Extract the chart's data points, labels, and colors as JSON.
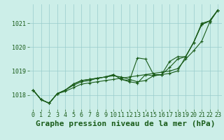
{
  "title": "Graphe pression niveau de la mer (hPa)",
  "background_color": "#cceee8",
  "grid_color": "#99cccc",
  "line_color": "#1a5c1a",
  "xlim": [
    -0.5,
    23.5
  ],
  "ylim": [
    1017.4,
    1021.8
  ],
  "xticks": [
    0,
    1,
    2,
    3,
    4,
    5,
    6,
    7,
    8,
    9,
    10,
    11,
    12,
    13,
    14,
    15,
    16,
    17,
    18,
    19,
    20,
    21,
    22,
    23
  ],
  "yticks": [
    1018,
    1019,
    1020,
    1021
  ],
  "series": [
    [
      1018.2,
      1017.8,
      1017.65,
      1018.05,
      1018.15,
      1018.3,
      1018.45,
      1018.5,
      1018.55,
      1018.6,
      1018.65,
      1018.7,
      1018.75,
      1018.8,
      1018.85,
      1018.9,
      1018.95,
      1019.0,
      1019.1,
      1019.5,
      1019.85,
      1020.25,
      1021.05,
      1021.55
    ],
    [
      1018.2,
      1017.8,
      1017.65,
      1018.05,
      1018.2,
      1018.4,
      1018.55,
      1018.6,
      1018.7,
      1018.75,
      1018.85,
      1018.65,
      1018.6,
      1019.55,
      1019.5,
      1018.85,
      1018.85,
      1019.15,
      1019.5,
      1019.6,
      1020.2,
      1021.0,
      1021.1,
      1021.55
    ],
    [
      1018.2,
      1017.8,
      1017.65,
      1018.05,
      1018.2,
      1018.45,
      1018.6,
      1018.65,
      1018.7,
      1018.75,
      1018.8,
      1018.75,
      1018.65,
      1018.55,
      1018.6,
      1018.8,
      1018.85,
      1018.9,
      1019.0,
      1019.6,
      1020.2,
      1020.95,
      1021.1,
      1021.55
    ],
    [
      1018.2,
      1017.8,
      1017.65,
      1018.05,
      1018.2,
      1018.45,
      1018.6,
      1018.65,
      1018.7,
      1018.75,
      1018.85,
      1018.65,
      1018.55,
      1018.5,
      1018.85,
      1018.8,
      1018.85,
      1019.4,
      1019.6,
      1019.6,
      1020.2,
      1020.95,
      1021.1,
      1021.55
    ]
  ],
  "marker": "+",
  "markersize": 3.5,
  "linewidth": 0.8,
  "title_fontsize": 8,
  "tick_fontsize": 6
}
